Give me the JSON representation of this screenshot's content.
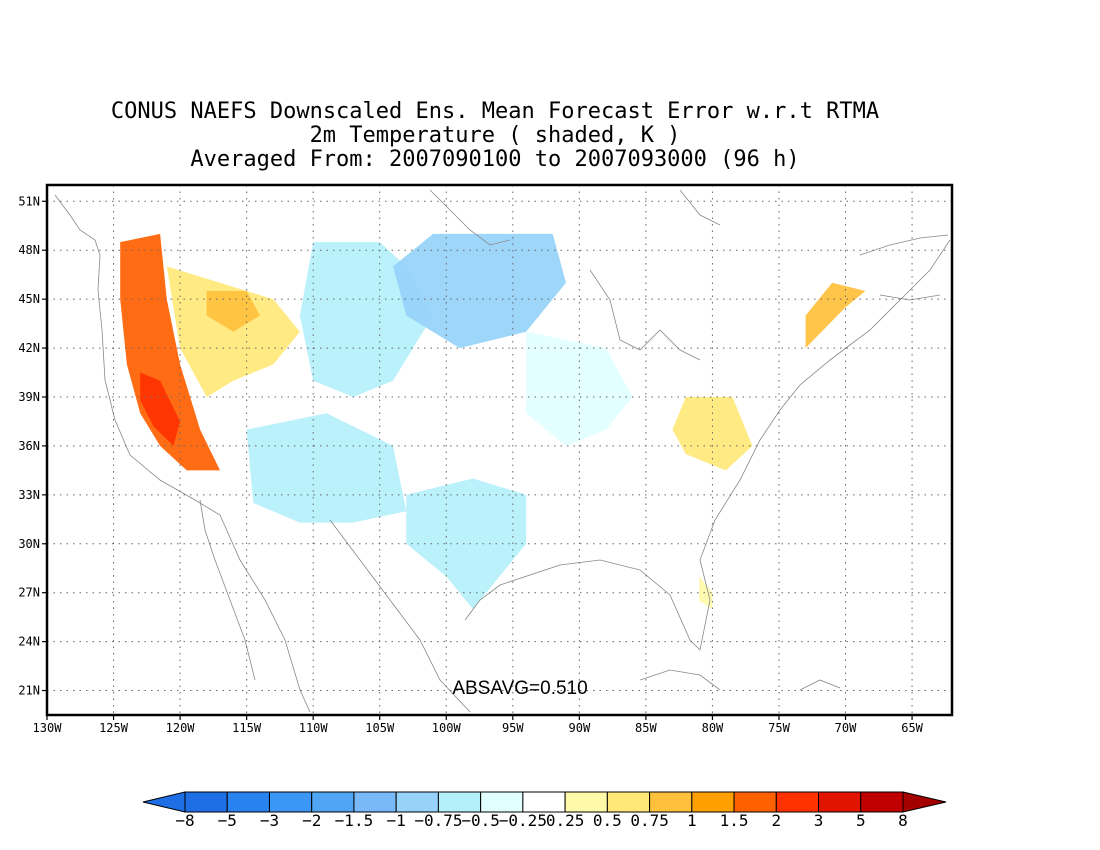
{
  "title": {
    "line1": "CONUS NAEFS Downscaled Ens. Mean Forecast Error w.r.t RTMA",
    "line2": "2m Temperature ( shaded, K )",
    "line3": "Averaged From: 2007090100 to 2007093000 (96 h)"
  },
  "map": {
    "lon_range": [
      -130,
      -62
    ],
    "lat_range": [
      19.5,
      52
    ],
    "lon_ticks": [
      {
        "value": -130,
        "label": "130W"
      },
      {
        "value": -125,
        "label": "125W"
      },
      {
        "value": -120,
        "label": "120W"
      },
      {
        "value": -115,
        "label": "115W"
      },
      {
        "value": -110,
        "label": "110W"
      },
      {
        "value": -105,
        "label": "105W"
      },
      {
        "value": -100,
        "label": "100W"
      },
      {
        "value": -95,
        "label": "95W"
      },
      {
        "value": -90,
        "label": "90W"
      },
      {
        "value": -85,
        "label": "85W"
      },
      {
        "value": -80,
        "label": "80W"
      },
      {
        "value": -75,
        "label": "75W"
      },
      {
        "value": -70,
        "label": "70W"
      },
      {
        "value": -65,
        "label": "65W"
      }
    ],
    "lat_ticks": [
      {
        "value": 21,
        "label": "21N"
      },
      {
        "value": 24,
        "label": "24N"
      },
      {
        "value": 27,
        "label": "27N"
      },
      {
        "value": 30,
        "label": "30N"
      },
      {
        "value": 33,
        "label": "33N"
      },
      {
        "value": 36,
        "label": "36N"
      },
      {
        "value": 39,
        "label": "39N"
      },
      {
        "value": 42,
        "label": "42N"
      },
      {
        "value": 45,
        "label": "45N"
      },
      {
        "value": 48,
        "label": "48N"
      },
      {
        "value": 51,
        "label": "51N"
      }
    ],
    "grid": true,
    "absavg_label": "ABSAVG=0.510"
  },
  "colorbar": {
    "labels": [
      "-8",
      "-5",
      "-3",
      "-2",
      "-1.5",
      "-1",
      "-0.75",
      "-0.5",
      "-0.25",
      "0.25",
      "0.5",
      "0.75",
      "1",
      "1.5",
      "2",
      "3",
      "5",
      "8"
    ],
    "colors": [
      "#1e6ee6",
      "#1e6ee6",
      "#2882f0",
      "#3c96f5",
      "#50a5f5",
      "#78b9fa",
      "#96d2fa",
      "#b4f0fa",
      "#e1ffff",
      "#ffffff",
      "#fffaaa",
      "#ffe878",
      "#ffc03c",
      "#ffa000",
      "#ff6000",
      "#ff3200",
      "#e11400",
      "#c00000",
      "#a50000"
    ]
  },
  "regions": [
    {
      "name": "west-coast-warm",
      "value": 1.5,
      "lonlat": [
        [
          -124.5,
          48.5
        ],
        [
          -121.5,
          49
        ],
        [
          -121,
          45
        ],
        [
          -120,
          41
        ],
        [
          -118.5,
          37
        ],
        [
          -117,
          34.5
        ],
        [
          -119.5,
          34.5
        ],
        [
          -121.5,
          36
        ],
        [
          -123,
          38
        ],
        [
          -124,
          41
        ],
        [
          -124.5,
          45
        ]
      ]
    },
    {
      "name": "central-valley-hot",
      "value": 2,
      "lonlat": [
        [
          -123,
          40.5
        ],
        [
          -121.5,
          40
        ],
        [
          -120,
          37.5
        ],
        [
          -120.5,
          36
        ],
        [
          -122,
          37.2
        ],
        [
          -123,
          38.8
        ]
      ]
    },
    {
      "name": "great-basin-warm",
      "value": 0.5,
      "lonlat": [
        [
          -121,
          47
        ],
        [
          -117,
          46
        ],
        [
          -113,
          45
        ],
        [
          -111,
          43
        ],
        [
          -113,
          41
        ],
        [
          -116,
          40
        ],
        [
          -118,
          39
        ],
        [
          -120,
          42
        ]
      ]
    },
    {
      "name": "rockies-cool",
      "value": -0.75,
      "lonlat": [
        [
          -110,
          48.5
        ],
        [
          -105,
          48.5
        ],
        [
          -103,
          47
        ],
        [
          -101,
          44
        ],
        [
          -104,
          40
        ],
        [
          -107,
          39
        ],
        [
          -110,
          40
        ],
        [
          -111,
          44
        ]
      ]
    },
    {
      "name": "northern-plains-cold",
      "value": -1,
      "lonlat": [
        [
          -101,
          49
        ],
        [
          -92,
          49
        ],
        [
          -91,
          46
        ],
        [
          -94,
          43
        ],
        [
          -99,
          42
        ],
        [
          -103,
          44
        ],
        [
          -104,
          47
        ]
      ]
    },
    {
      "name": "southwest-cool",
      "value": -0.75,
      "lonlat": [
        [
          -115,
          37
        ],
        [
          -109,
          38
        ],
        [
          -104,
          36
        ],
        [
          -103,
          32
        ],
        [
          -107,
          31.3
        ],
        [
          -111,
          31.3
        ],
        [
          -114.5,
          32.5
        ]
      ]
    },
    {
      "name": "texas-cool",
      "value": -0.75,
      "lonlat": [
        [
          -103,
          33
        ],
        [
          -98,
          34
        ],
        [
          -94,
          33
        ],
        [
          -94,
          30
        ],
        [
          -97,
          27
        ],
        [
          -98,
          26
        ],
        [
          -100,
          28
        ],
        [
          -103,
          30
        ]
      ]
    },
    {
      "name": "midwest-cool",
      "value": -0.5,
      "lonlat": [
        [
          -94,
          43
        ],
        [
          -88,
          42
        ],
        [
          -86,
          39
        ],
        [
          -88,
          37
        ],
        [
          -91,
          36
        ],
        [
          -94,
          38
        ]
      ]
    },
    {
      "name": "appalachian-warm",
      "value": 0.5,
      "lonlat": [
        [
          -82,
          39
        ],
        [
          -78.5,
          39
        ],
        [
          -77,
          36
        ],
        [
          -79,
          34.5
        ],
        [
          -82,
          35.5
        ],
        [
          -83,
          37
        ]
      ]
    },
    {
      "name": "new-england-warm",
      "value": 0.75,
      "lonlat": [
        [
          -73,
          42
        ],
        [
          -70,
          44.5
        ],
        [
          -68.5,
          45.5
        ],
        [
          -71,
          46
        ],
        [
          -73,
          44
        ]
      ]
    },
    {
      "name": "nevada-warm-spot",
      "value": 0.75,
      "lonlat": [
        [
          -118,
          45.5
        ],
        [
          -115,
          45.5
        ],
        [
          -114,
          44
        ],
        [
          -116,
          43
        ],
        [
          -118,
          44
        ]
      ]
    },
    {
      "name": "florida-warm",
      "value": 0.25,
      "lonlat": [
        [
          -81,
          28
        ],
        [
          -80,
          27
        ],
        [
          -80,
          26
        ],
        [
          -81,
          26.5
        ]
      ]
    }
  ]
}
